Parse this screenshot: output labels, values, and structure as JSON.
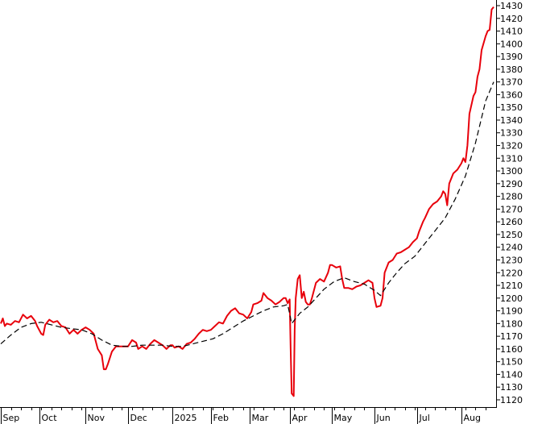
{
  "chart_data": {
    "type": "line",
    "title": "",
    "xlabel": "",
    "ylabel": "",
    "ylim": [
      1115,
      1432
    ],
    "xlim": [
      0,
      244
    ],
    "grid": false,
    "legend": "none",
    "y_ticks": [
      1120,
      1130,
      1140,
      1150,
      1160,
      1170,
      1180,
      1190,
      1200,
      1210,
      1220,
      1230,
      1240,
      1250,
      1260,
      1270,
      1280,
      1290,
      1300,
      1310,
      1320,
      1330,
      1340,
      1350,
      1360,
      1370,
      1380,
      1390,
      1400,
      1410,
      1420,
      1430
    ],
    "x_month_ticks": [
      {
        "label": "Sep",
        "t": 0
      },
      {
        "label": "Oct",
        "t": 19
      },
      {
        "label": "Nov",
        "t": 42
      },
      {
        "label": "Dec",
        "t": 63
      },
      {
        "label": "2025",
        "t": 85
      },
      {
        "label": "Feb",
        "t": 104
      },
      {
        "label": "Mar",
        "t": 123
      },
      {
        "label": "Apr",
        "t": 143
      },
      {
        "label": "May",
        "t": 164
      },
      {
        "label": "Jun",
        "t": 185
      },
      {
        "label": "Jul",
        "t": 206
      },
      {
        "label": "Aug",
        "t": 228
      }
    ],
    "series": [
      {
        "color": "#e8000b",
        "style": "solid",
        "points": [
          [
            0,
            1180
          ],
          [
            1,
            1184
          ],
          [
            2,
            1178
          ],
          [
            3,
            1180
          ],
          [
            5,
            1179
          ],
          [
            7,
            1182
          ],
          [
            9,
            1181
          ],
          [
            11,
            1187
          ],
          [
            13,
            1184
          ],
          [
            15,
            1186
          ],
          [
            17,
            1182
          ],
          [
            18,
            1178
          ],
          [
            20,
            1172
          ],
          [
            21,
            1171
          ],
          [
            22,
            1179
          ],
          [
            24,
            1183
          ],
          [
            26,
            1181
          ],
          [
            28,
            1182
          ],
          [
            30,
            1178
          ],
          [
            32,
            1177
          ],
          [
            34,
            1172
          ],
          [
            36,
            1175
          ],
          [
            38,
            1172
          ],
          [
            40,
            1175
          ],
          [
            42,
            1177
          ],
          [
            44,
            1175
          ],
          [
            46,
            1172
          ],
          [
            48,
            1160
          ],
          [
            50,
            1155
          ],
          [
            51,
            1144
          ],
          [
            52,
            1144
          ],
          [
            53,
            1148
          ],
          [
            55,
            1158
          ],
          [
            57,
            1162
          ],
          [
            60,
            1162
          ],
          [
            63,
            1162
          ],
          [
            65,
            1167
          ],
          [
            67,
            1165
          ],
          [
            68,
            1160
          ],
          [
            70,
            1162
          ],
          [
            72,
            1160
          ],
          [
            74,
            1164
          ],
          [
            76,
            1167
          ],
          [
            78,
            1165
          ],
          [
            80,
            1163
          ],
          [
            82,
            1160
          ],
          [
            84,
            1163
          ],
          [
            85,
            1163
          ],
          [
            86,
            1161
          ],
          [
            88,
            1162
          ],
          [
            90,
            1160
          ],
          [
            92,
            1164
          ],
          [
            94,
            1165
          ],
          [
            96,
            1168
          ],
          [
            98,
            1172
          ],
          [
            100,
            1175
          ],
          [
            102,
            1174
          ],
          [
            104,
            1175
          ],
          [
            106,
            1178
          ],
          [
            108,
            1181
          ],
          [
            110,
            1180
          ],
          [
            112,
            1186
          ],
          [
            114,
            1190
          ],
          [
            116,
            1192
          ],
          [
            118,
            1188
          ],
          [
            120,
            1187
          ],
          [
            122,
            1184
          ],
          [
            124,
            1189
          ],
          [
            125,
            1195
          ],
          [
            127,
            1196
          ],
          [
            129,
            1198
          ],
          [
            130,
            1204
          ],
          [
            132,
            1200
          ],
          [
            134,
            1198
          ],
          [
            136,
            1195
          ],
          [
            138,
            1197
          ],
          [
            140,
            1200
          ],
          [
            141,
            1200
          ],
          [
            142,
            1196
          ],
          [
            143,
            1199
          ],
          [
            143.5,
            1160
          ],
          [
            144,
            1125
          ],
          [
            145,
            1123
          ],
          [
            145.5,
            1175
          ],
          [
            146,
            1200
          ],
          [
            147,
            1215
          ],
          [
            148,
            1218
          ],
          [
            149,
            1200
          ],
          [
            150,
            1205
          ],
          [
            151,
            1197
          ],
          [
            152,
            1195
          ],
          [
            153,
            1195
          ],
          [
            154,
            1200
          ],
          [
            156,
            1212
          ],
          [
            158,
            1215
          ],
          [
            160,
            1213
          ],
          [
            162,
            1220
          ],
          [
            163,
            1226
          ],
          [
            164,
            1226
          ],
          [
            166,
            1224
          ],
          [
            168,
            1225
          ],
          [
            169,
            1215
          ],
          [
            170,
            1208
          ],
          [
            172,
            1208
          ],
          [
            174,
            1207
          ],
          [
            176,
            1209
          ],
          [
            178,
            1210
          ],
          [
            180,
            1212
          ],
          [
            182,
            1214
          ],
          [
            183,
            1213
          ],
          [
            184,
            1212
          ],
          [
            185,
            1200
          ],
          [
            186,
            1193
          ],
          [
            188,
            1194
          ],
          [
            189,
            1200
          ],
          [
            190,
            1220
          ],
          [
            192,
            1228
          ],
          [
            194,
            1230
          ],
          [
            196,
            1235
          ],
          [
            198,
            1236
          ],
          [
            200,
            1238
          ],
          [
            202,
            1240
          ],
          [
            204,
            1244
          ],
          [
            206,
            1247
          ],
          [
            207,
            1252
          ],
          [
            209,
            1260
          ],
          [
            210,
            1263
          ],
          [
            212,
            1270
          ],
          [
            214,
            1274
          ],
          [
            216,
            1276
          ],
          [
            218,
            1280
          ],
          [
            219,
            1284
          ],
          [
            220,
            1282
          ],
          [
            221,
            1273
          ],
          [
            222,
            1290
          ],
          [
            224,
            1298
          ],
          [
            226,
            1301
          ],
          [
            228,
            1306
          ],
          [
            229,
            1310
          ],
          [
            230,
            1307
          ],
          [
            231,
            1320
          ],
          [
            232,
            1345
          ],
          [
            234,
            1359
          ],
          [
            235,
            1362
          ],
          [
            236,
            1374
          ],
          [
            237,
            1380
          ],
          [
            238,
            1395
          ],
          [
            240,
            1406
          ],
          [
            241,
            1410
          ],
          [
            242,
            1411
          ],
          [
            243,
            1427
          ],
          [
            244,
            1429
          ]
        ]
      },
      {
        "color": "#000000",
        "style": "dashed",
        "points": [
          [
            0,
            1164
          ],
          [
            5,
            1171
          ],
          [
            10,
            1177
          ],
          [
            15,
            1180
          ],
          [
            20,
            1181
          ],
          [
            25,
            1179
          ],
          [
            30,
            1177
          ],
          [
            35,
            1176
          ],
          [
            40,
            1175
          ],
          [
            45,
            1172
          ],
          [
            50,
            1167
          ],
          [
            55,
            1163
          ],
          [
            60,
            1162
          ],
          [
            65,
            1162
          ],
          [
            70,
            1163
          ],
          [
            75,
            1163
          ],
          [
            80,
            1163
          ],
          [
            85,
            1162
          ],
          [
            90,
            1162
          ],
          [
            95,
            1164
          ],
          [
            100,
            1166
          ],
          [
            105,
            1168
          ],
          [
            110,
            1172
          ],
          [
            115,
            1177
          ],
          [
            120,
            1182
          ],
          [
            125,
            1186
          ],
          [
            130,
            1190
          ],
          [
            135,
            1193
          ],
          [
            140,
            1194
          ],
          [
            142,
            1195
          ],
          [
            144,
            1180
          ],
          [
            148,
            1188
          ],
          [
            152,
            1193
          ],
          [
            156,
            1200
          ],
          [
            160,
            1207
          ],
          [
            165,
            1213
          ],
          [
            170,
            1216
          ],
          [
            175,
            1213
          ],
          [
            180,
            1211
          ],
          [
            185,
            1206
          ],
          [
            188,
            1202
          ],
          [
            192,
            1212
          ],
          [
            196,
            1220
          ],
          [
            200,
            1227
          ],
          [
            205,
            1233
          ],
          [
            210,
            1243
          ],
          [
            215,
            1253
          ],
          [
            220,
            1263
          ],
          [
            225,
            1278
          ],
          [
            230,
            1296
          ],
          [
            235,
            1322
          ],
          [
            240,
            1355
          ],
          [
            244,
            1370
          ]
        ]
      }
    ]
  }
}
